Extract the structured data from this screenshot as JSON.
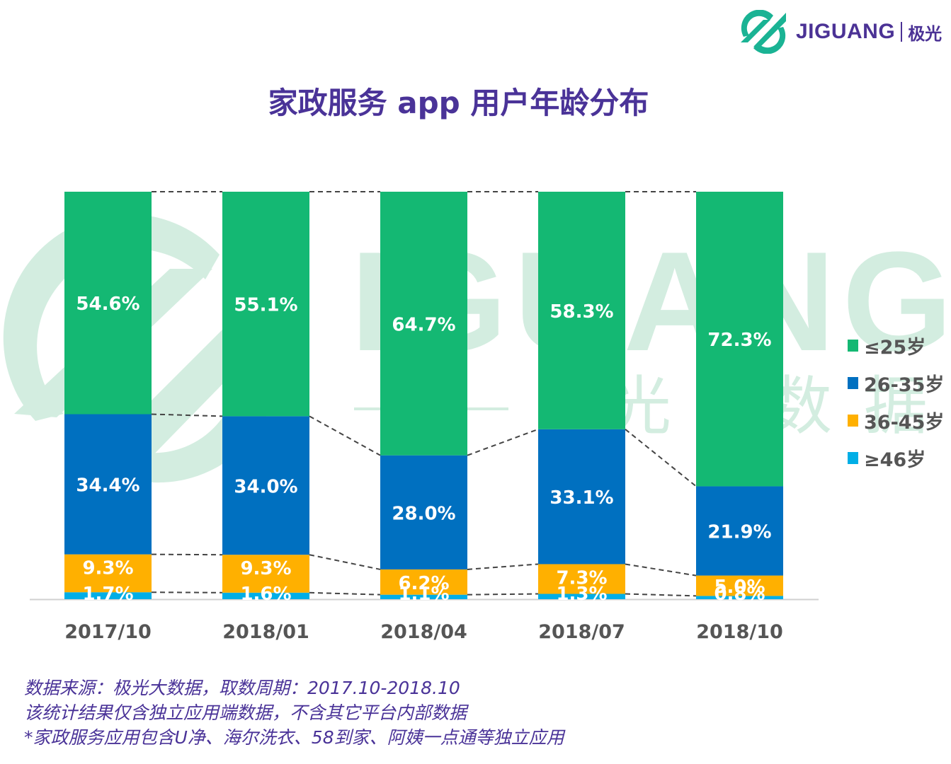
{
  "brand": {
    "logo_text": "JIGUANG",
    "logo_cn": "极光",
    "color": "#4b3295",
    "mark_color": "#1ab394"
  },
  "watermark": {
    "text": "JIGUANG",
    "cn": [
      "极",
      "光",
      "大",
      "数",
      "据"
    ],
    "color": "#d3ede0"
  },
  "chart_data": {
    "type": "bar",
    "stacked": true,
    "title": "家政服务 app 用户年龄分布",
    "xlabel": "",
    "ylabel": "",
    "ylim": [
      0,
      100
    ],
    "grid": false,
    "legend_position": "right",
    "categories": [
      "2017/10",
      "2018/01",
      "2018/04",
      "2018/07",
      "2018/10"
    ],
    "series": [
      {
        "name": "≥46岁",
        "color": "#00aee6",
        "values": [
          1.7,
          1.6,
          1.1,
          1.3,
          0.8
        ]
      },
      {
        "name": "36-45岁",
        "color": "#ffb000",
        "values": [
          9.3,
          9.3,
          6.2,
          7.3,
          5.0
        ]
      },
      {
        "name": "26-35岁",
        "color": "#0070c0",
        "values": [
          34.4,
          34.0,
          28.0,
          33.1,
          21.9
        ]
      },
      {
        "name": "≤25岁",
        "color": "#14b873",
        "values": [
          54.6,
          55.1,
          64.7,
          58.3,
          72.3
        ]
      }
    ],
    "data_labels": [
      [
        "1.7%",
        "1.6%",
        "1.1%",
        "1.3%",
        "0.8%"
      ],
      [
        "9.3%",
        "9.3%",
        "6.2%",
        "7.3%",
        "5.0%"
      ],
      [
        "34.4%",
        "34.0%",
        "28.0%",
        "33.1%",
        "21.9%"
      ],
      [
        "54.6%",
        "55.1%",
        "64.7%",
        "58.3%",
        "72.3%"
      ]
    ],
    "legend_order": [
      "≤25岁",
      "26-35岁",
      "36-45岁",
      "≥46岁"
    ],
    "connector_lines": "dashed"
  },
  "legend": [
    {
      "label": "≤25岁",
      "color": "#14b873"
    },
    {
      "label": "26-35岁",
      "color": "#0070c0"
    },
    {
      "label": "36-45岁",
      "color": "#ffb000"
    },
    {
      "label": "≥46岁",
      "color": "#00aee6"
    }
  ],
  "notes": [
    "数据来源：极光大数据，取数周期：2017.10-2018.10",
    "该统计结果仅含独立应用端数据，不含其它平台内部数据",
    " *家政服务应用包含U净、海尔洗衣、58到家、阿姨一点通等独立应用"
  ]
}
